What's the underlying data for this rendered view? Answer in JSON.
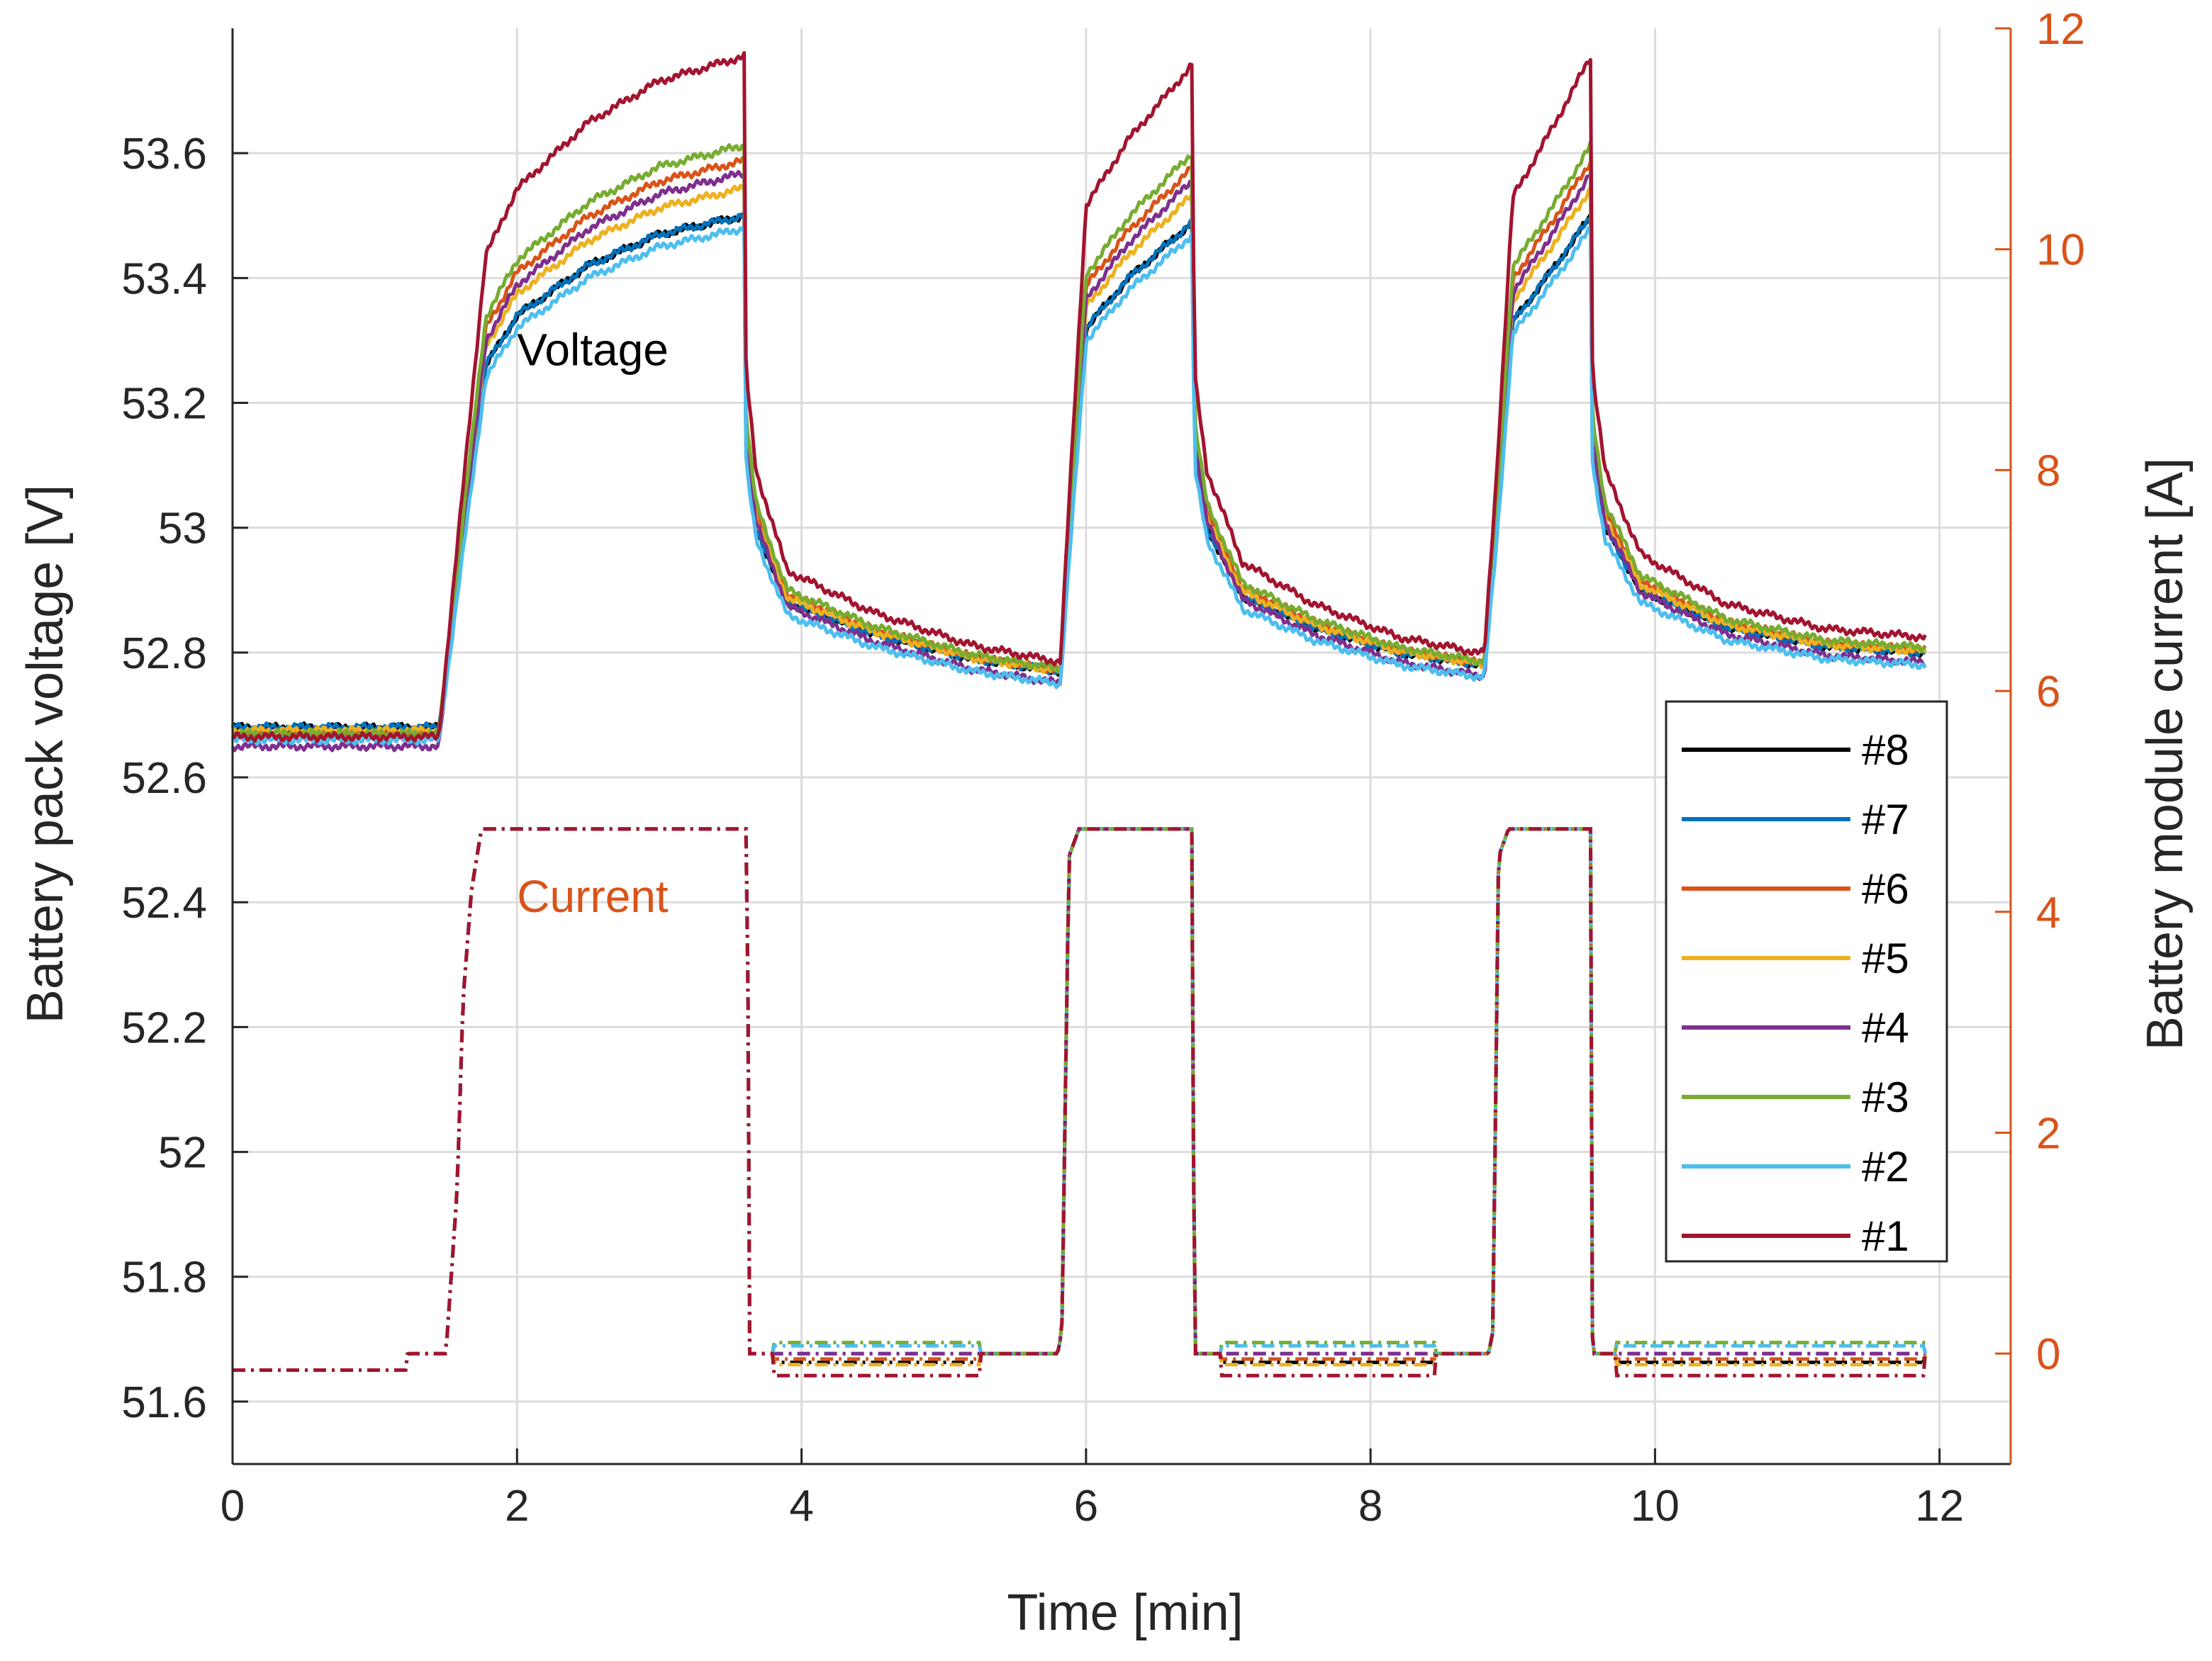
{
  "chart_data": {
    "type": "line",
    "title": "",
    "xlabel": "Time [min]",
    "ylabel_left": "Battery pack voltage [V]",
    "ylabel_right": "Battery module current [A]",
    "xlim": [
      0,
      12.5
    ],
    "ylim_left": [
      51.5,
      53.8
    ],
    "ylim_right": [
      -1,
      12
    ],
    "xticks": [
      0,
      2,
      4,
      6,
      8,
      10,
      12
    ],
    "xtick_labels": [
      "0",
      "2",
      "4",
      "6",
      "8",
      "10",
      "12"
    ],
    "yticks_left": [
      51.6,
      51.8,
      52,
      52.2,
      52.4,
      52.6,
      52.8,
      53,
      53.2,
      53.4,
      53.6
    ],
    "ytick_labels_left": [
      "51.6",
      "51.8",
      "52",
      "52.2",
      "52.4",
      "52.6",
      "52.8",
      "53",
      "53.2",
      "53.4",
      "53.6"
    ],
    "yticks_right": [
      0,
      2,
      4,
      6,
      8,
      10,
      12
    ],
    "ytick_labels_right": [
      "0",
      "2",
      "4",
      "6",
      "8",
      "10",
      "12"
    ],
    "grid": true,
    "legend_position": "right",
    "right_axis_color": "#D95319",
    "annotations": [
      {
        "text": "Voltage",
        "x": 2.0,
        "y": 53.26,
        "axis": "left",
        "color": "#000000"
      },
      {
        "text": "Current",
        "x": 2.0,
        "y": 4.0,
        "axis": "right",
        "color": "#D95319"
      }
    ],
    "voltage_keypoints": {
      "x": [
        0,
        1.45,
        1.62,
        1.78,
        2.0,
        2.5,
        3.0,
        3.6,
        3.61,
        3.68,
        3.9,
        4.5,
        5.2,
        5.82,
        5.88,
        6.0,
        6.3,
        6.75,
        6.76,
        6.85,
        7.1,
        7.6,
        8.2,
        8.8,
        8.88,
        9.0,
        9.3,
        9.55,
        9.56,
        9.65,
        9.9,
        10.5,
        11.2,
        11.9
      ],
      "y": [
        52.68,
        52.68,
        52.98,
        53.26,
        53.34,
        53.42,
        53.47,
        53.5,
        53.12,
        53.0,
        52.88,
        52.83,
        52.79,
        52.77,
        52.96,
        53.32,
        53.4,
        53.49,
        53.12,
        53.0,
        52.89,
        52.84,
        52.8,
        52.78,
        52.98,
        53.33,
        53.42,
        53.5,
        53.12,
        53.0,
        52.9,
        52.84,
        52.81,
        52.8
      ]
    },
    "current_keypoints": {
      "x": [
        0,
        1.22,
        1.23,
        1.5,
        1.58,
        1.62,
        1.68,
        1.75,
        3.62,
        3.63,
        5.8,
        5.83,
        5.88,
        5.95,
        6.75,
        6.76,
        8.83,
        8.86,
        8.9,
        8.97,
        9.55,
        9.56,
        11.9
      ],
      "y": [
        -0.15,
        -0.15,
        0.0,
        0.0,
        1.5,
        3.2,
        4.2,
        4.75,
        4.75,
        0.0,
        0.0,
        0.2,
        4.5,
        4.75,
        4.75,
        0.0,
        0.0,
        0.2,
        4.5,
        4.75,
        4.75,
        0.0,
        0.0
      ]
    },
    "series": [
      {
        "name": "#8",
        "color": "#000000",
        "v_offset": 0.0,
        "v_gain": 1.0,
        "i_rest": -0.08
      },
      {
        "name": "#7",
        "color": "#0072BD",
        "v_offset": 0.0,
        "v_gain": 1.0,
        "i_rest": 0.0
      },
      {
        "name": "#6",
        "color": "#D95319",
        "v_offset": -0.01,
        "v_gain": 1.12,
        "i_rest": -0.05
      },
      {
        "name": "#5",
        "color": "#EDB120",
        "v_offset": -0.005,
        "v_gain": 1.06,
        "i_rest": -0.1
      },
      {
        "name": "#4",
        "color": "#7E2F8E",
        "v_offset": -0.03,
        "v_gain": 1.12,
        "i_rest": 0.0
      },
      {
        "name": "#3",
        "color": "#77AC30",
        "v_offset": -0.01,
        "v_gain": 1.15,
        "i_rest": 0.1
      },
      {
        "name": "#2",
        "color": "#4DBEEE",
        "v_offset": -0.02,
        "v_gain": 1.0,
        "i_rest": 0.07
      },
      {
        "name": "#1",
        "color": "#A2142F",
        "v_offset": -0.015,
        "v_gain": 1.33,
        "i_rest": -0.2
      }
    ]
  }
}
